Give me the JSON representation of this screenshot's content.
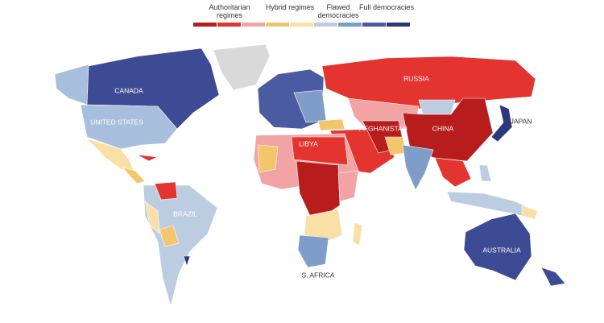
{
  "legend": [
    {
      "label": "Authoritarian regimes",
      "colors": [
        "#b81d1d",
        "#e3342f",
        "#f2a3a3"
      ]
    },
    {
      "label": "Hybrid regimes",
      "colors": [
        "#f2c66d",
        "#f8e0a6"
      ]
    },
    {
      "label": "Flawed democracies",
      "colors": [
        "#bccde2",
        "#7f9dc9"
      ]
    },
    {
      "label": "Full democracies",
      "colors": [
        "#4b5ba1",
        "#2c387c"
      ]
    }
  ],
  "labels": {
    "canada": "CANADA",
    "united_states": "UNITED STATES",
    "brazil": "BRAZIL",
    "russia": "RUSSIA",
    "china": "CHINA",
    "afghanistan": "AFGHANISTAN",
    "libya": "LIBYA",
    "japan": "JAPAN",
    "australia": "AUSTRALIA",
    "south_africa": "S. AFRICA"
  }
}
